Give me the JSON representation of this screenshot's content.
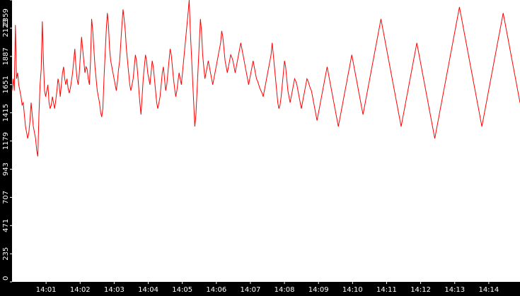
{
  "colors": {
    "background": "#000000",
    "plot_area": "#ffffff",
    "series_line": "#ff0000",
    "tick_text": "#ffffff"
  },
  "chart_data": {
    "type": "line",
    "title": "",
    "xlabel": "",
    "ylabel": "",
    "grid": false,
    "legend": "none",
    "ylim": [
      0,
      2359
    ],
    "y_ticks": [
      "0",
      "235",
      "471",
      "707",
      "943",
      "1179",
      "1415",
      "1651",
      "1887",
      "2123",
      "2359"
    ],
    "x_ticks": [
      "14:01",
      "14:02",
      "14:03",
      "14:04",
      "14:05",
      "14:06",
      "14:07",
      "14:08",
      "14:09",
      "14:10",
      "14:11",
      "14:12",
      "14:13",
      "14:14"
    ],
    "x_range_minutes": [
      "14:00:00",
      "14:14:55"
    ],
    "series": [
      {
        "x_interval_seconds": 1,
        "values": [
          1600,
          1700,
          1600,
          2150,
          1700,
          1750,
          1650,
          1600,
          1550,
          1480,
          1500,
          1400,
          1300,
          1250,
          1200,
          1250,
          1350,
          1500,
          1400,
          1300,
          1250,
          1200,
          1100,
          1050,
          1400,
          1650,
          1780,
          2180,
          1850,
          1600,
          1550,
          1600,
          1650,
          1500,
          1450,
          1480,
          1550,
          1500,
          1450,
          1520,
          1600,
          1700,
          1650,
          1550,
          1650,
          1750,
          1800,
          1700,
          1650,
          1700,
          1620,
          1580,
          1620,
          1680,
          1750,
          1850,
          1950,
          1800,
          1700,
          1650,
          1750,
          1900,
          2050,
          1950,
          1850,
          1750,
          1800,
          1780,
          1700,
          1650,
          1850,
          2200,
          2100,
          1950,
          1800,
          1700,
          1600,
          1550,
          1500,
          1420,
          1380,
          1450,
          1700,
          1900,
          2100,
          2250,
          2150,
          1950,
          1850,
          1800,
          1750,
          1700,
          1650,
          1600,
          1680,
          1780,
          1850,
          2000,
          2150,
          2280,
          2200,
          2100,
          1950,
          1850,
          1750,
          1650,
          1600,
          1650,
          1700,
          1800,
          1900,
          1850,
          1750,
          1620,
          1500,
          1400,
          1550,
          1700,
          1800,
          1900,
          1850,
          1750,
          1700,
          1650,
          1750,
          1850,
          1800,
          1700,
          1600,
          1500,
          1450,
          1500,
          1550,
          1650,
          1750,
          1800,
          1700,
          1600,
          1650,
          1750,
          1850,
          1950,
          1900,
          1800,
          1700,
          1620,
          1550,
          1600,
          1680,
          1750,
          1700,
          1650,
          1750,
          1850,
          1950,
          2050,
          2150,
          2250,
          2359,
          2100,
          1900,
          1700,
          1500,
          1300,
          1400,
          1600,
          1800,
          2000,
          2200,
          2100,
          1900,
          1800,
          1700,
          1750,
          1800,
          1850,
          1800,
          1750,
          1700,
          1650,
          1700,
          1750,
          1800,
          1850,
          1900,
          1950,
          2000,
          2100,
          2050,
          1950,
          1850,
          1800,
          1750,
          1800,
          1850,
          1900,
          1880,
          1850,
          1800,
          1750,
          1800,
          1850,
          1900,
          1950,
          2000,
          1950,
          1900,
          1850,
          1800,
          1750,
          1700,
          1650,
          1700,
          1750,
          1800,
          1850,
          1800,
          1750,
          1700,
          1680,
          1650,
          1620,
          1600,
          1580,
          1550,
          1600,
          1650,
          1700,
          1750,
          1800,
          1850,
          1900,
          2000,
          1900,
          1800,
          1700,
          1600,
          1500,
          1450,
          1480,
          1550,
          1650,
          1750,
          1850,
          1800,
          1700,
          1600,
          1550,
          1500,
          1550,
          1600,
          1650,
          1700,
          1680,
          1650,
          1600,
          1550,
          1500,
          1450,
          1500,
          1550,
          1600,
          1650,
          1700,
          1680,
          1650,
          1620,
          1600,
          1550,
          1500,
          1450,
          1400,
          1350,
          1400,
          1450,
          1500,
          1550,
          1600,
          1650,
          1700,
          1750,
          1800,
          1750,
          1700,
          1650,
          1600,
          1550,
          1500,
          1450,
          1400,
          1350,
          1300,
          1350,
          1400,
          1450,
          1500,
          1550,
          1600,
          1650,
          1700,
          1750,
          1800,
          1850,
          1900,
          1850,
          1800,
          1750,
          1700,
          1650,
          1600,
          1550,
          1500,
          1450,
          1400,
          1450,
          1500,
          1550,
          1600,
          1650,
          1700,
          1750,
          1800,
          1850,
          1900,
          1950,
          2000,
          2050,
          2100,
          2150,
          2200,
          2150,
          2100,
          2050,
          2000,
          1950,
          1900,
          1850,
          1800,
          1750,
          1700,
          1650,
          1600,
          1550,
          1500,
          1450,
          1400,
          1350,
          1300,
          1350,
          1400,
          1450,
          1500,
          1550,
          1600,
          1650,
          1700,
          1750,
          1800,
          1850,
          1900,
          1950,
          2000,
          1950,
          1900,
          1850,
          1800,
          1750,
          1700,
          1650,
          1600,
          1550,
          1500,
          1450,
          1400,
          1350,
          1300,
          1250,
          1200,
          1250,
          1300,
          1350,
          1400,
          1450,
          1500,
          1550,
          1600,
          1650,
          1700,
          1750,
          1800,
          1850,
          1900,
          1950,
          2000,
          2050,
          2100,
          2150,
          2200,
          2250,
          2300,
          2250,
          2200,
          2150,
          2100,
          2050,
          2000,
          1950,
          1900,
          1850,
          1800,
          1750,
          1700,
          1650,
          1600,
          1550,
          1500,
          1450,
          1400,
          1350,
          1300,
          1350,
          1400,
          1450,
          1500,
          1550,
          1600,
          1650,
          1700,
          1750,
          1800,
          1850,
          1900,
          1950,
          2000,
          2050,
          2100,
          2150,
          2200,
          2250,
          2200,
          2150,
          2100,
          2050,
          2000,
          1950,
          1900,
          1850,
          1800,
          1750,
          1700,
          1650,
          1600,
          1550,
          1500
        ]
      }
    ]
  }
}
